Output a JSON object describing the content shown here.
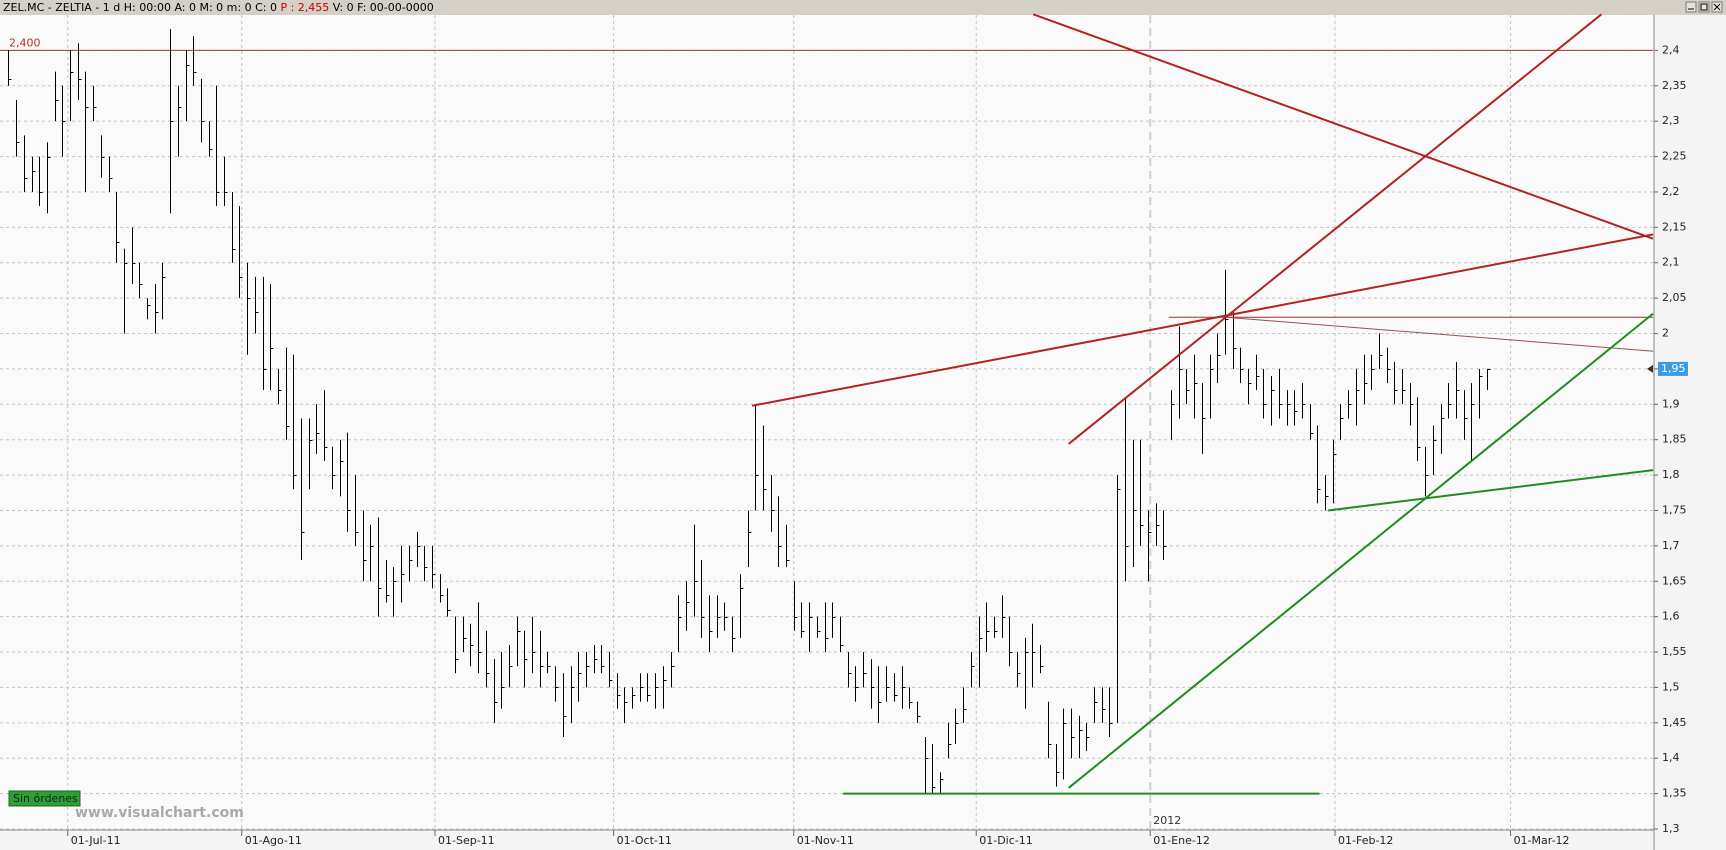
{
  "chart_data": {
    "type": "hlc",
    "header": [
      {
        "text": "ZEL.MC - ZELTIA -  1 d H: 00:00 A: 0 M: 0 m: 0 C: 0",
        "color": "#000000"
      },
      {
        "text": "P : 2,455",
        "color": "#cc0000"
      },
      {
        "text": "V: 0 F: 00-00-0000",
        "color": "#000000"
      }
    ],
    "bar_color": "#000000",
    "low": [
      2.35,
      2.25,
      2.2,
      2.2,
      2.18,
      2.17,
      2.3,
      2.25,
      2.3,
      2.33,
      2.2,
      2.3,
      2.22,
      2.2,
      2.1,
      2.0,
      2.07,
      2.05,
      2.02,
      2.0,
      2.02,
      2.17,
      2.25,
      2.3,
      2.35,
      2.27,
      2.25,
      2.18,
      2.18,
      2.1,
      2.05,
      1.97,
      2.0,
      1.92,
      1.92,
      1.9,
      1.85,
      1.78,
      1.68,
      1.78,
      1.83,
      1.82,
      1.78,
      1.77,
      1.72,
      1.7,
      1.65,
      1.65,
      1.6,
      1.62,
      1.6,
      1.62,
      1.65,
      1.67,
      1.65,
      1.64,
      1.62,
      1.6,
      1.52,
      1.55,
      1.53,
      1.52,
      1.5,
      1.45,
      1.47,
      1.5,
      1.53,
      1.5,
      1.52,
      1.5,
      1.52,
      1.48,
      1.43,
      1.45,
      1.48,
      1.5,
      1.52,
      1.52,
      1.5,
      1.47,
      1.45,
      1.47,
      1.48,
      1.48,
      1.47,
      1.47,
      1.5,
      1.55,
      1.58,
      1.6,
      1.57,
      1.55,
      1.57,
      1.58,
      1.55,
      1.57,
      1.67,
      1.75,
      1.75,
      1.72,
      1.67,
      1.67,
      1.58,
      1.57,
      1.55,
      1.57,
      1.55,
      1.57,
      1.55,
      1.5,
      1.48,
      1.5,
      1.47,
      1.45,
      1.48,
      1.48,
      1.47,
      1.47,
      1.45,
      1.35,
      1.35,
      1.35,
      1.4,
      1.42,
      1.45,
      1.5,
      1.5,
      1.55,
      1.57,
      1.57,
      1.53,
      1.5,
      1.47,
      1.5,
      1.52,
      1.4,
      1.36,
      1.37,
      1.4,
      1.4,
      1.41,
      1.45,
      1.45,
      1.43,
      1.45,
      1.65,
      1.67,
      1.7,
      1.65,
      1.7,
      1.68,
      1.85,
      1.88,
      1.9,
      1.88,
      1.83,
      1.88,
      1.93,
      1.97,
      1.95,
      1.93,
      1.9,
      1.92,
      1.88,
      1.87,
      1.88,
      1.87,
      1.87,
      1.88,
      1.85,
      1.76,
      1.75,
      1.76,
      1.85,
      1.88,
      1.87,
      1.9,
      1.92,
      1.95,
      1.93,
      1.9,
      1.9,
      1.87,
      1.82,
      1.77,
      1.8,
      1.83,
      1.88,
      1.88,
      1.85,
      1.82,
      1.88,
      1.92
    ],
    "high": [
      2.4,
      2.33,
      2.28,
      2.25,
      2.25,
      2.27,
      2.37,
      2.35,
      2.4,
      2.41,
      2.37,
      2.35,
      2.28,
      2.25,
      2.2,
      2.12,
      2.15,
      2.1,
      2.05,
      2.07,
      2.1,
      2.43,
      2.35,
      2.4,
      2.42,
      2.36,
      2.3,
      2.35,
      2.25,
      2.2,
      2.18,
      2.1,
      2.08,
      2.08,
      2.07,
      1.95,
      1.98,
      1.97,
      1.88,
      1.88,
      1.9,
      1.92,
      1.84,
      1.85,
      1.86,
      1.8,
      1.75,
      1.73,
      1.74,
      1.68,
      1.67,
      1.7,
      1.7,
      1.72,
      1.7,
      1.7,
      1.66,
      1.64,
      1.6,
      1.6,
      1.59,
      1.62,
      1.58,
      1.54,
      1.55,
      1.56,
      1.6,
      1.58,
      1.6,
      1.58,
      1.55,
      1.53,
      1.52,
      1.53,
      1.55,
      1.55,
      1.56,
      1.56,
      1.55,
      1.52,
      1.5,
      1.5,
      1.52,
      1.52,
      1.52,
      1.53,
      1.55,
      1.63,
      1.65,
      1.73,
      1.68,
      1.63,
      1.63,
      1.62,
      1.6,
      1.66,
      1.75,
      1.9,
      1.87,
      1.8,
      1.77,
      1.73,
      1.65,
      1.62,
      1.62,
      1.6,
      1.62,
      1.62,
      1.6,
      1.55,
      1.53,
      1.55,
      1.54,
      1.53,
      1.53,
      1.52,
      1.53,
      1.5,
      1.48,
      1.43,
      1.42,
      1.38,
      1.45,
      1.47,
      1.5,
      1.55,
      1.6,
      1.62,
      1.6,
      1.63,
      1.6,
      1.55,
      1.57,
      1.59,
      1.56,
      1.48,
      1.42,
      1.47,
      1.47,
      1.46,
      1.45,
      1.5,
      1.5,
      1.5,
      1.8,
      1.91,
      1.85,
      1.85,
      1.75,
      1.76,
      1.75,
      1.92,
      2.01,
      1.95,
      1.97,
      1.93,
      1.97,
      2.0,
      2.09,
      2.03,
      1.98,
      1.95,
      1.97,
      1.95,
      1.94,
      1.95,
      1.92,
      1.92,
      1.93,
      1.9,
      1.87,
      1.8,
      1.85,
      1.9,
      1.92,
      1.95,
      1.97,
      1.97,
      2.0,
      1.98,
      1.96,
      1.95,
      1.93,
      1.91,
      1.84,
      1.87,
      1.9,
      1.93,
      1.96,
      1.92,
      1.93,
      1.95,
      1.95
    ],
    "close": [
      2.36,
      2.27,
      2.22,
      2.23,
      2.2,
      2.25,
      2.33,
      2.3,
      2.37,
      2.36,
      2.32,
      2.32,
      2.25,
      2.22,
      2.13,
      2.1,
      2.1,
      2.07,
      2.04,
      2.03,
      2.08,
      2.3,
      2.32,
      2.38,
      2.37,
      2.3,
      2.26,
      2.2,
      2.2,
      2.12,
      2.08,
      2.05,
      2.03,
      1.95,
      1.98,
      1.92,
      1.87,
      1.8,
      1.72,
      1.85,
      1.86,
      1.84,
      1.8,
      1.82,
      1.75,
      1.72,
      1.68,
      1.7,
      1.64,
      1.63,
      1.65,
      1.66,
      1.68,
      1.7,
      1.67,
      1.66,
      1.63,
      1.61,
      1.54,
      1.57,
      1.56,
      1.55,
      1.52,
      1.48,
      1.5,
      1.53,
      1.58,
      1.54,
      1.55,
      1.53,
      1.53,
      1.5,
      1.46,
      1.5,
      1.52,
      1.53,
      1.54,
      1.53,
      1.51,
      1.49,
      1.48,
      1.49,
      1.5,
      1.49,
      1.5,
      1.51,
      1.53,
      1.6,
      1.62,
      1.65,
      1.6,
      1.58,
      1.6,
      1.6,
      1.57,
      1.64,
      1.72,
      1.8,
      1.78,
      1.75,
      1.7,
      1.68,
      1.6,
      1.58,
      1.6,
      1.58,
      1.57,
      1.6,
      1.56,
      1.52,
      1.5,
      1.52,
      1.5,
      1.48,
      1.5,
      1.49,
      1.5,
      1.48,
      1.46,
      1.4,
      1.36,
      1.37,
      1.42,
      1.45,
      1.47,
      1.53,
      1.57,
      1.58,
      1.58,
      1.6,
      1.55,
      1.52,
      1.55,
      1.55,
      1.53,
      1.42,
      1.38,
      1.45,
      1.43,
      1.44,
      1.43,
      1.48,
      1.47,
      1.45,
      1.78,
      1.7,
      1.75,
      1.73,
      1.72,
      1.73,
      1.7,
      1.9,
      1.95,
      1.92,
      1.93,
      1.88,
      1.95,
      1.97,
      2.02,
      1.98,
      1.95,
      1.93,
      1.94,
      1.9,
      1.92,
      1.9,
      1.9,
      1.89,
      1.9,
      1.86,
      1.78,
      1.77,
      1.83,
      1.88,
      1.9,
      1.92,
      1.93,
      1.95,
      1.97,
      1.95,
      1.92,
      1.92,
      1.9,
      1.84,
      1.8,
      1.85,
      1.88,
      1.9,
      1.92,
      1.88,
      1.9,
      1.94,
      1.95
    ],
    "xlim": [
      -1.1,
      213.6
    ],
    "xticks": [
      {
        "value": 7.7,
        "label": "01-Jul-11"
      },
      {
        "value": 30.3,
        "label": "01-Ago-11"
      },
      {
        "value": 55.4,
        "label": "01-Sep-11"
      },
      {
        "value": 78.6,
        "label": "01-Oct-11"
      },
      {
        "value": 102,
        "label": "01-Nov-11"
      },
      {
        "value": 125.7,
        "label": "01-Dic-11"
      },
      {
        "value": 148.3,
        "label": "01-Ene-12"
      },
      {
        "value": 172.3,
        "label": "01-Feb-12"
      },
      {
        "value": 195.1,
        "label": "01-Mar-12"
      }
    ],
    "year_label": "2012",
    "ylim": [
      1.3,
      2.45
    ],
    "yticks": [
      {
        "value": 1.3,
        "label": "1,3"
      },
      {
        "value": 1.35,
        "label": "1,35"
      },
      {
        "value": 1.4,
        "label": "1,4"
      },
      {
        "value": 1.45,
        "label": "1,45"
      },
      {
        "value": 1.5,
        "label": "1,5"
      },
      {
        "value": 1.55,
        "label": "1,55"
      },
      {
        "value": 1.6,
        "label": "1,6"
      },
      {
        "value": 1.65,
        "label": "1,65"
      },
      {
        "value": 1.7,
        "label": "1,7"
      },
      {
        "value": 1.75,
        "label": "1,75"
      },
      {
        "value": 1.8,
        "label": "1,8"
      },
      {
        "value": 1.85,
        "label": "1,85"
      },
      {
        "value": 1.9,
        "label": "1,9"
      },
      {
        "value": 1.95,
        "label": "1,95"
      },
      {
        "value": 2.0,
        "label": "2"
      },
      {
        "value": 2.05,
        "label": "2,05"
      },
      {
        "value": 2.1,
        "label": "2,1"
      },
      {
        "value": 2.15,
        "label": "2,15"
      },
      {
        "value": 2.2,
        "label": "2,2"
      },
      {
        "value": 2.25,
        "label": "2,25"
      },
      {
        "value": 2.3,
        "label": "2,3"
      },
      {
        "value": 2.35,
        "label": "2,35"
      },
      {
        "value": 2.4,
        "label": "2,4"
      }
    ],
    "grid": true,
    "reference_line": {
      "value": 2.4,
      "label": "2,400",
      "color": "#b03030"
    },
    "last_price": {
      "value": 1.95,
      "label": "1,95",
      "color": "#3a9be8"
    },
    "trendlines": [
      {
        "x": [
          133.1,
          213.6
        ],
        "y": [
          2.451,
          2.134
        ],
        "color": "#b22222",
        "width": 2
      },
      {
        "x": [
          137.7,
          206.9
        ],
        "y": [
          1.844,
          2.451
        ],
        "color": "#b22222",
        "width": 2
      },
      {
        "x": [
          96.6,
          213.6
        ],
        "y": [
          1.898,
          2.14
        ],
        "color": "#b22222",
        "width": 2
      },
      {
        "x": [
          150.7,
          213.6
        ],
        "y": [
          2.023,
          2.023
        ],
        "color": "#a03030",
        "width": 1
      },
      {
        "x": [
          158.1,
          213.6
        ],
        "y": [
          2.023,
          1.975
        ],
        "color": "#9a5050",
        "width": 1
      },
      {
        "x": [
          108.4,
          170.3
        ],
        "y": [
          1.35,
          1.35
        ],
        "color": "#1e8c1e",
        "width": 2
      },
      {
        "x": [
          137.7,
          213.6
        ],
        "y": [
          1.358,
          2.028
        ],
        "color": "#1e8c1e",
        "width": 2
      },
      {
        "x": [
          171.4,
          213.6
        ],
        "y": [
          1.75,
          1.807
        ],
        "color": "#1e8c1e",
        "width": 2
      }
    ],
    "orders_button": "Sin órdenes",
    "watermark": "www.visualchart.com"
  }
}
